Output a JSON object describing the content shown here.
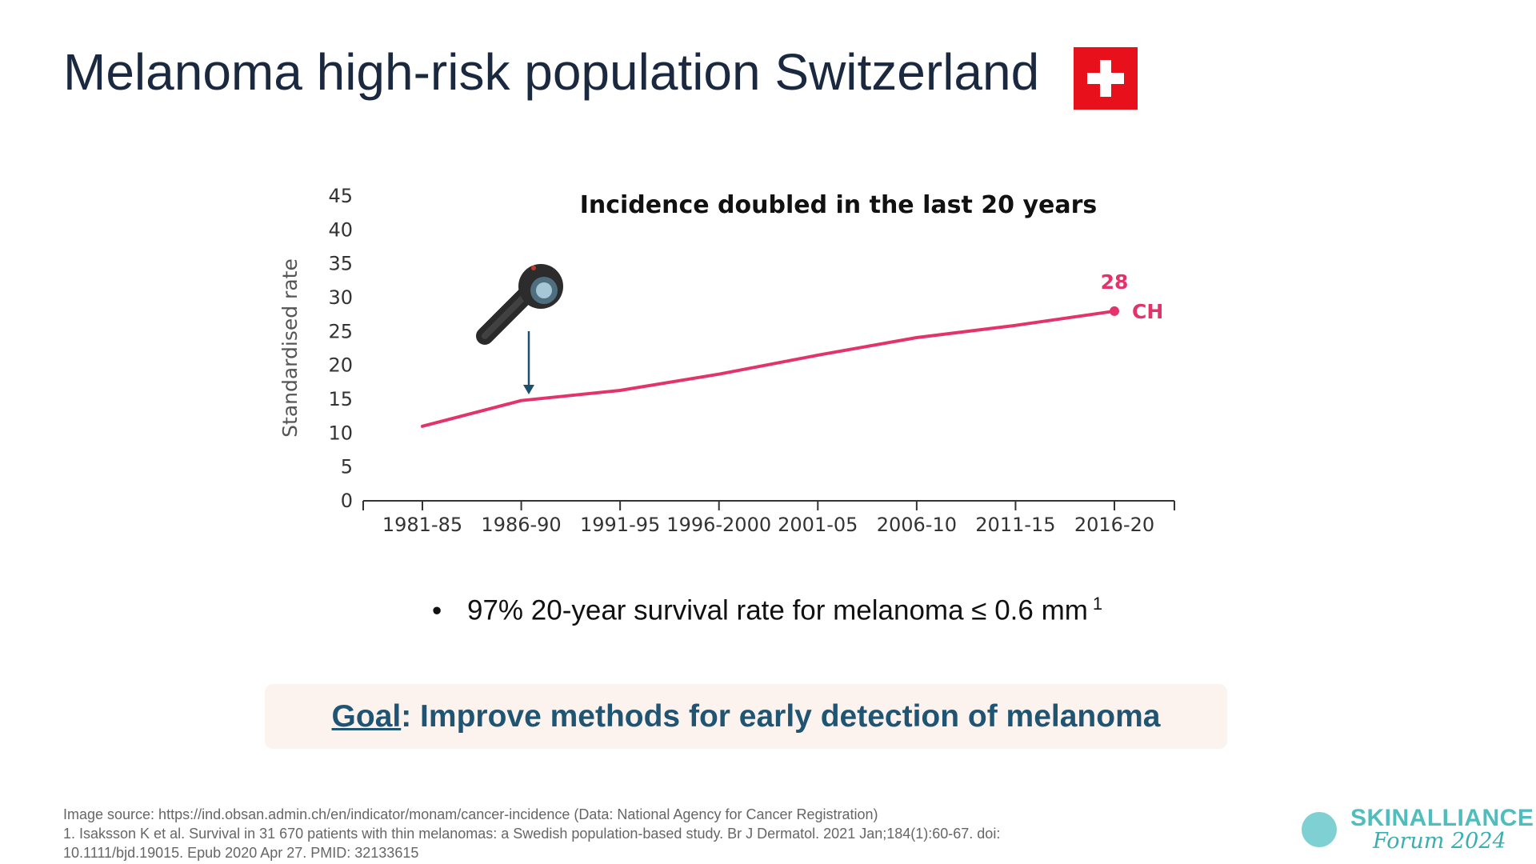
{
  "slide": {
    "title": "Melanoma high-risk population Switzerland",
    "bullet": "97% 20-year survival rate for melanoma ≤ 0.6 mm",
    "bullet_ref": "1",
    "goal_label": "Goal",
    "goal_text": ": Improve methods for early detection of melanoma",
    "footnote_source": "Image source: https://ind.obsan.admin.ch/en/indicator/monam/cancer-incidence (Data: National Agency for Cancer Registration)",
    "footnote_ref": "1.  Isaksson K et al. Survival in 31 670 patients with thin melanomas: a Swedish population-based study. Br J Dermatol. 2021 Jan;184(1):60-67. doi: 10.1111/bjd.19015. Epub 2020 Apr 27. PMID: 32133615",
    "logo_name": "SKINALLIANCE",
    "logo_sub": "Forum 2024"
  },
  "colors": {
    "series": "#e2336b",
    "title": "#1a2940",
    "goal": "#1f5472",
    "flag": "#e8111b",
    "logo": "#4fbcbe"
  },
  "chart_data": {
    "type": "line",
    "title": "Incidence doubled in the last 20 years",
    "ylabel": "Standardised rate",
    "xlabel": "",
    "categories": [
      "1981-85",
      "1986-90",
      "1991-95",
      "1996-2000",
      "2001-05",
      "2006-10",
      "2011-15",
      "2016-20"
    ],
    "series": [
      {
        "name": "CH",
        "values": [
          11,
          14.8,
          16.3,
          18.7,
          21.5,
          24.1,
          25.9,
          28
        ]
      }
    ],
    "end_label": "28",
    "ylim": [
      0,
      45
    ],
    "yticks": [
      0,
      5,
      10,
      15,
      20,
      25,
      30,
      35,
      40,
      45
    ],
    "grid": false,
    "annotation": {
      "icon": "dermatoscope-icon",
      "points_to": "1986-90"
    }
  }
}
